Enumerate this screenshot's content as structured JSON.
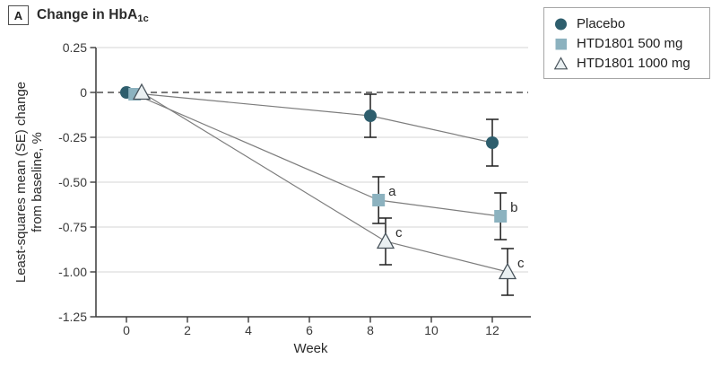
{
  "header": {
    "panel_label": "A",
    "title_prefix": "Change in HbA",
    "title_subscript": "1c"
  },
  "chart_data": {
    "type": "line",
    "title": "Change in HbA1c",
    "xlabel": "Week",
    "ylabel": "Least-squares mean (SE) change from baseline, %",
    "ylabel_lines": [
      "Least-squares mean (SE) change",
      "from baseline, %"
    ],
    "x_ticks": [
      0,
      2,
      4,
      6,
      8,
      10,
      12
    ],
    "x_tick_labels": [
      "0",
      "2",
      "4",
      "6",
      "8",
      "10",
      "12"
    ],
    "y_ticks": [
      0.25,
      0,
      -0.25,
      -0.5,
      -0.75,
      -1,
      -1.25
    ],
    "y_tick_labels": [
      "0.25",
      "0",
      "-0.25",
      "-0.50",
      "-0.75",
      "-1.00",
      "-1.25"
    ],
    "xlim": [
      -1,
      13.3
    ],
    "ylim": [
      -1.25,
      0.25
    ],
    "grid": "horizontal",
    "zero_reference_line": "dashed",
    "legend_position": "top-right-outside",
    "error_bars": "SE",
    "colors": {
      "series_line": "#7d7d7d",
      "error_bar": "#1f1f1f",
      "gridline": "#e3e3e3",
      "zero_line": "#4d4d4d",
      "axis": "#3a3a3a",
      "text": "#2b2b2b"
    },
    "series": [
      {
        "name": "Placebo",
        "marker": "circle-filled",
        "color": "#2e5e6d",
        "stroke": "#2e5e6d",
        "x_offset_weeks": 0,
        "points": [
          {
            "week": 0,
            "y": 0.0,
            "se": 0,
            "label": ""
          },
          {
            "week": 8,
            "y": -0.13,
            "se": 0.12,
            "label": ""
          },
          {
            "week": 12,
            "y": -0.28,
            "se": 0.13,
            "label": ""
          }
        ]
      },
      {
        "name": "HTD1801 500 mg",
        "marker": "square-filled",
        "color": "#8cb2bf",
        "stroke": "#8cb2bf",
        "x_offset_weeks": 0.27,
        "points": [
          {
            "week": 0,
            "y": -0.01,
            "se": 0,
            "label": ""
          },
          {
            "week": 8,
            "y": -0.6,
            "se": 0.13,
            "label": "a"
          },
          {
            "week": 12,
            "y": -0.69,
            "se": 0.13,
            "label": "b"
          }
        ]
      },
      {
        "name": "HTD1801 1000 mg",
        "marker": "triangle-open",
        "color": "#eaf0f2",
        "stroke": "#47525a",
        "x_offset_weeks": 0.5,
        "points": [
          {
            "week": 0,
            "y": 0.0,
            "se": 0,
            "label": ""
          },
          {
            "week": 8,
            "y": -0.83,
            "se": 0.13,
            "label": "c"
          },
          {
            "week": 12,
            "y": -1.0,
            "se": 0.13,
            "label": "c"
          }
        ]
      }
    ]
  }
}
